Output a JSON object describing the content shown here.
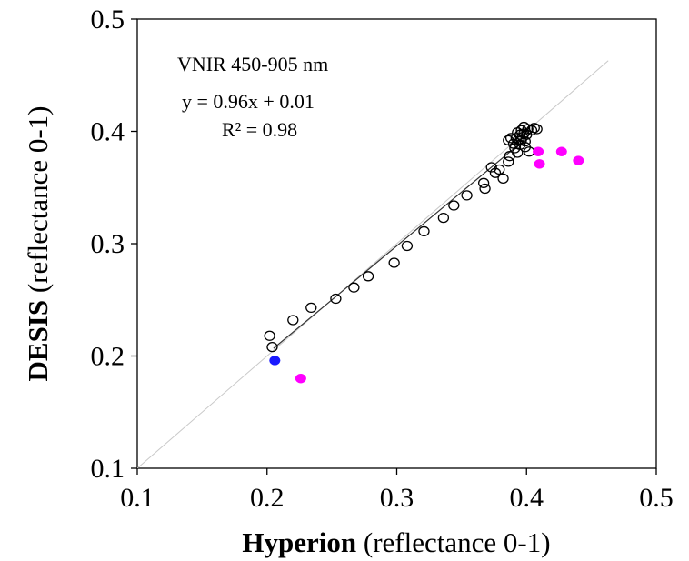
{
  "chart_data": {
    "type": "scatter",
    "xlabel": {
      "bold": "Hyperion",
      "rest": " (reflectance 0-1)"
    },
    "ylabel": {
      "bold": "DESIS",
      "rest": " (reflectance 0-1)"
    },
    "xlim": [
      0.1,
      0.5
    ],
    "ylim": [
      0.1,
      0.5
    ],
    "xticks": [
      "0.1",
      "0.2",
      "0.3",
      "0.4",
      "0.5"
    ],
    "yticks": [
      "0.1",
      "0.2",
      "0.3",
      "0.4",
      "0.5"
    ],
    "grid": false,
    "annotations": {
      "band": "VNIR 450-905  nm",
      "equation": "y = 0.96x + 0.01",
      "r2": "R² = 0.98"
    },
    "reference_line": {
      "type": "1:1",
      "color": "#c8c8c8"
    },
    "fit_line": {
      "x": [
        0.205,
        0.395
      ],
      "slope": 0.96,
      "intercept": 0.01,
      "color": "#333333"
    },
    "series": [
      {
        "marker": "open-circle",
        "color": "#000000",
        "points": [
          [
            0.202,
            0.218
          ],
          [
            0.204,
            0.208
          ],
          [
            0.22,
            0.232
          ],
          [
            0.234,
            0.243
          ],
          [
            0.253,
            0.251
          ],
          [
            0.267,
            0.261
          ],
          [
            0.278,
            0.271
          ],
          [
            0.298,
            0.283
          ],
          [
            0.308,
            0.298
          ],
          [
            0.321,
            0.311
          ],
          [
            0.336,
            0.323
          ],
          [
            0.344,
            0.334
          ],
          [
            0.354,
            0.343
          ],
          [
            0.367,
            0.354
          ],
          [
            0.368,
            0.349
          ],
          [
            0.373,
            0.368
          ],
          [
            0.376,
            0.363
          ],
          [
            0.379,
            0.366
          ],
          [
            0.382,
            0.358
          ],
          [
            0.386,
            0.373
          ],
          [
            0.387,
            0.378
          ],
          [
            0.386,
            0.392
          ],
          [
            0.388,
            0.394
          ],
          [
            0.39,
            0.389
          ],
          [
            0.391,
            0.385
          ],
          [
            0.392,
            0.394
          ],
          [
            0.393,
            0.399
          ],
          [
            0.393,
            0.381
          ],
          [
            0.394,
            0.393
          ],
          [
            0.395,
            0.388
          ],
          [
            0.395,
            0.397
          ],
          [
            0.396,
            0.401
          ],
          [
            0.396,
            0.392
          ],
          [
            0.397,
            0.395
          ],
          [
            0.398,
            0.404
          ],
          [
            0.398,
            0.398
          ],
          [
            0.399,
            0.391
          ],
          [
            0.399,
            0.386
          ],
          [
            0.4,
            0.397
          ],
          [
            0.401,
            0.402
          ],
          [
            0.402,
            0.382
          ],
          [
            0.404,
            0.401
          ],
          [
            0.406,
            0.403
          ],
          [
            0.408,
            0.402
          ]
        ]
      },
      {
        "marker": "filled-circle",
        "color": "#ff00ff",
        "points": [
          [
            0.226,
            0.18
          ],
          [
            0.409,
            0.382
          ],
          [
            0.41,
            0.371
          ],
          [
            0.427,
            0.382
          ],
          [
            0.44,
            0.374
          ]
        ]
      },
      {
        "marker": "filled-circle",
        "color": "#1a1aff",
        "points": [
          [
            0.206,
            0.196
          ]
        ]
      }
    ]
  }
}
